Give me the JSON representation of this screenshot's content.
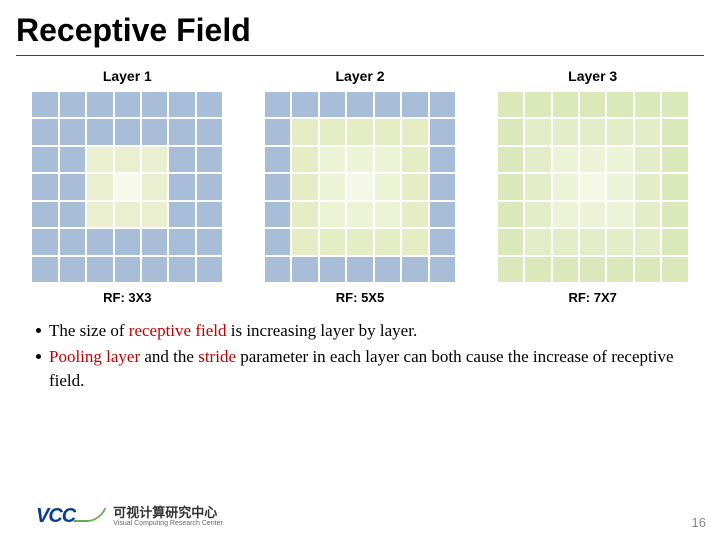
{
  "title": "Receptive Field",
  "panels": [
    {
      "label": "Layer 1",
      "caption": "RF: 3X3",
      "grid_size": 7,
      "base_color": "#a7bdd8",
      "highlight_color": "#e9efcf",
      "center_color": "#f7f9ea",
      "highlight": {
        "rowStart": 2,
        "rowEnd": 4,
        "colStart": 2,
        "colEnd": 4
      }
    },
    {
      "label": "Layer 2",
      "caption": "RF: 5X5",
      "grid_size": 7,
      "base_color": "#a7bdd8",
      "highlight_color": "#e5edc4",
      "center_color": "#f5f8e6",
      "highlight": {
        "rowStart": 1,
        "rowEnd": 5,
        "colStart": 1,
        "colEnd": 5
      }
    },
    {
      "label": "Layer 3",
      "caption": "RF: 7X7",
      "grid_size": 7,
      "base_color": "#b9d28a",
      "highlight_color": "#dbe8b9",
      "center_color": "#f4f8e5",
      "highlight": {
        "rowStart": 0,
        "rowEnd": 6,
        "colStart": 0,
        "colEnd": 6
      }
    }
  ],
  "bullets": [
    {
      "segments": [
        {
          "text": "The size of ",
          "red": false
        },
        {
          "text": "receptive field",
          "red": true
        },
        {
          "text": " is increasing layer by layer.",
          "red": false
        }
      ]
    },
    {
      "segments": [
        {
          "text": "Pooling layer",
          "red": true
        },
        {
          "text": " and the ",
          "red": false
        },
        {
          "text": "stride",
          "red": true
        },
        {
          "text": " parameter in each layer can both cause the increase of receptive field.",
          "red": false
        }
      ]
    }
  ],
  "logo": {
    "mark": "VCC",
    "cn": "可视计算研究中心",
    "en": "Visual Computing Research Center"
  },
  "slide_number": "16"
}
